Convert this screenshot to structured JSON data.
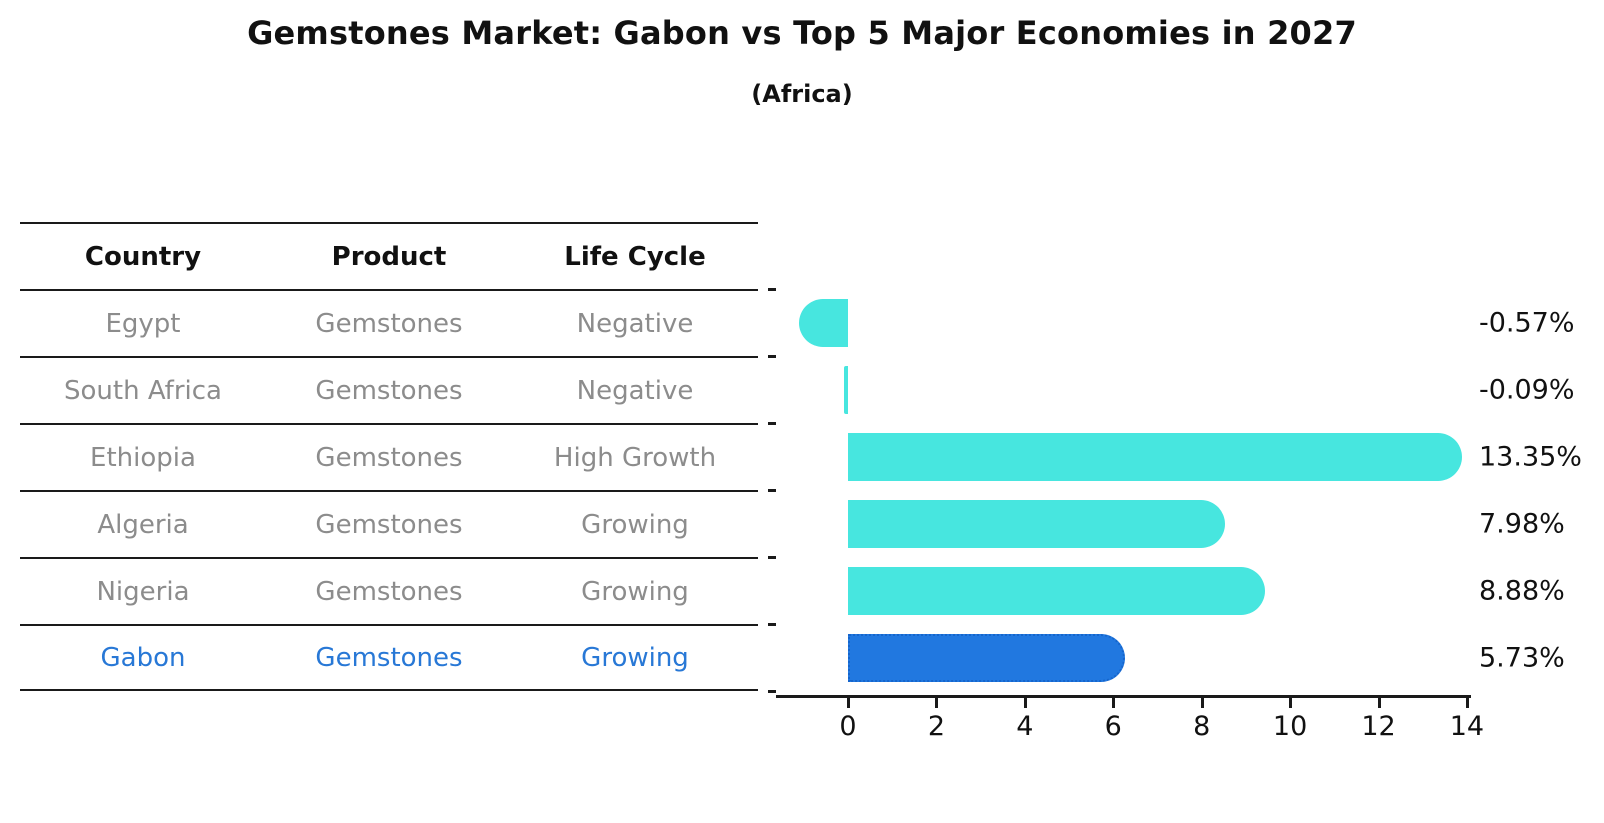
{
  "title": "Gemstones Market: Gabon vs Top 5 Major Economies in 2027",
  "subtitle": "(Africa)",
  "table": {
    "headers": [
      "Country",
      "Product",
      "Life Cycle"
    ],
    "rows": [
      {
        "country": "Egypt",
        "product": "Gemstones",
        "life_cycle": "Negative",
        "highlighted": false
      },
      {
        "country": "South Africa",
        "product": "Gemstones",
        "life_cycle": "Negative",
        "highlighted": false
      },
      {
        "country": "Ethiopia",
        "product": "Gemstones",
        "life_cycle": "High Growth",
        "highlighted": false
      },
      {
        "country": "Algeria",
        "product": "Gemstones",
        "life_cycle": "Growing",
        "highlighted": false
      },
      {
        "country": "Nigeria",
        "product": "Gemstones",
        "life_cycle": "Growing",
        "highlighted": true
      }
    ],
    "highlight_row": {
      "country": "Gabon",
      "product": "Gemstones",
      "life_cycle": "Growing"
    }
  },
  "chart_data": {
    "type": "bar",
    "orientation": "horizontal",
    "categories": [
      "Egypt",
      "South Africa",
      "Ethiopia",
      "Algeria",
      "Nigeria",
      "Gabon"
    ],
    "values": [
      -0.57,
      -0.09,
      13.35,
      7.98,
      8.88,
      5.73
    ],
    "value_labels": [
      "-0.57%",
      "-0.09%",
      "13.35%",
      "7.98%",
      "8.88%",
      "5.73%"
    ],
    "unit": "% growth",
    "x_ticks": [
      0,
      2,
      4,
      6,
      8,
      10,
      12,
      14
    ],
    "xlim": [
      -1.6,
      14.1
    ],
    "grid": false,
    "legend": "none",
    "highlight_category": "Gabon",
    "colors": {
      "bar": "#47e6df",
      "highlight_bar": "#2178e0",
      "highlight_bar_border": "#1565cc",
      "table_text": "#8c8c8c",
      "highlight_text": "#2878d6",
      "axis_and_labels": "#111111"
    }
  }
}
